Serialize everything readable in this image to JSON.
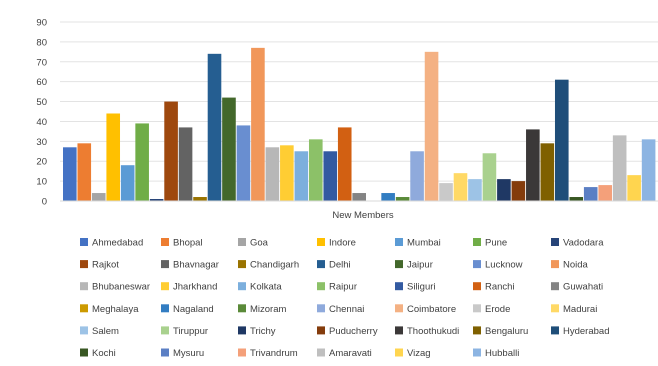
{
  "chart_data": {
    "type": "bar",
    "title": "",
    "xlabel": "New Members",
    "ylabel": "",
    "ylim": [
      0,
      90
    ],
    "yticks": [
      "0",
      "10",
      "20",
      "30",
      "40",
      "50",
      "60",
      "70",
      "80",
      "90"
    ],
    "grid": true,
    "legend_position": "bottom",
    "categories": [
      "New Members"
    ],
    "series": [
      {
        "name": "Ahmedabad",
        "values": [
          27
        ],
        "color": "#4472C4"
      },
      {
        "name": "Bhopal",
        "values": [
          29
        ],
        "color": "#ED7D31"
      },
      {
        "name": "Goa",
        "values": [
          4
        ],
        "color": "#A5A5A5"
      },
      {
        "name": "Indore",
        "values": [
          44
        ],
        "color": "#FFC000"
      },
      {
        "name": "Mumbai",
        "values": [
          18
        ],
        "color": "#5B9BD5"
      },
      {
        "name": "Pune",
        "values": [
          39
        ],
        "color": "#70AD47"
      },
      {
        "name": "Vadodara",
        "values": [
          1
        ],
        "color": "#264478"
      },
      {
        "name": "Rajkot",
        "values": [
          50
        ],
        "color": "#9E480E"
      },
      {
        "name": "Bhavnagar",
        "values": [
          37
        ],
        "color": "#636363"
      },
      {
        "name": "Chandigarh",
        "values": [
          2
        ],
        "color": "#997300"
      },
      {
        "name": "Delhi",
        "values": [
          74
        ],
        "color": "#255E91"
      },
      {
        "name": "Jaipur",
        "values": [
          52
        ],
        "color": "#43682B"
      },
      {
        "name": "Lucknow",
        "values": [
          38
        ],
        "color": "#698ED0"
      },
      {
        "name": "Noida",
        "values": [
          77
        ],
        "color": "#F1975A"
      },
      {
        "name": "Bhubaneswar",
        "values": [
          27
        ],
        "color": "#B7B7B7"
      },
      {
        "name": "Jharkhand",
        "values": [
          28
        ],
        "color": "#FFCD33"
      },
      {
        "name": "Kolkata",
        "values": [
          25
        ],
        "color": "#7CAFDD"
      },
      {
        "name": "Raipur",
        "values": [
          31
        ],
        "color": "#8CC168"
      },
      {
        "name": "Siliguri",
        "values": [
          25
        ],
        "color": "#335AA1"
      },
      {
        "name": "Ranchi",
        "values": [
          37
        ],
        "color": "#D26012"
      },
      {
        "name": "Guwahati",
        "values": [
          4
        ],
        "color": "#848484"
      },
      {
        "name": "Meghalaya",
        "values": [
          0
        ],
        "color": "#CC9A00"
      },
      {
        "name": "Nagaland",
        "values": [
          4
        ],
        "color": "#327DC2"
      },
      {
        "name": "Mizoram",
        "values": [
          2
        ],
        "color": "#5A8A39"
      },
      {
        "name": "Chennai",
        "values": [
          25
        ],
        "color": "#8FAADC"
      },
      {
        "name": "Coimbatore",
        "values": [
          75
        ],
        "color": "#F4B183"
      },
      {
        "name": "Erode",
        "values": [
          9
        ],
        "color": "#C9C9C9"
      },
      {
        "name": "Madurai",
        "values": [
          14
        ],
        "color": "#FFD966"
      },
      {
        "name": "Salem",
        "values": [
          11
        ],
        "color": "#9DC3E6"
      },
      {
        "name": "Tiruppur",
        "values": [
          24
        ],
        "color": "#A9D18E"
      },
      {
        "name": "Trichy",
        "values": [
          11
        ],
        "color": "#1F3864"
      },
      {
        "name": "Puducherry",
        "values": [
          10
        ],
        "color": "#843C0C"
      },
      {
        "name": "Thoothukudi",
        "values": [
          36
        ],
        "color": "#3B3838"
      },
      {
        "name": "Bengaluru",
        "values": [
          29
        ],
        "color": "#7F6000"
      },
      {
        "name": "Hyderabad",
        "values": [
          61
        ],
        "color": "#1F4E79"
      },
      {
        "name": "Kochi",
        "values": [
          2
        ],
        "color": "#385723"
      },
      {
        "name": "Mysuru",
        "values": [
          7
        ],
        "color": "#5B7FC4"
      },
      {
        "name": "Trivandrum",
        "values": [
          8
        ],
        "color": "#F4A07A"
      },
      {
        "name": "Amaravati",
        "values": [
          33
        ],
        "color": "#BFBFBF"
      },
      {
        "name": "Vizag",
        "values": [
          13
        ],
        "color": "#FFD54F"
      },
      {
        "name": "Hubballi",
        "values": [
          31
        ],
        "color": "#8CB4E2"
      }
    ]
  }
}
